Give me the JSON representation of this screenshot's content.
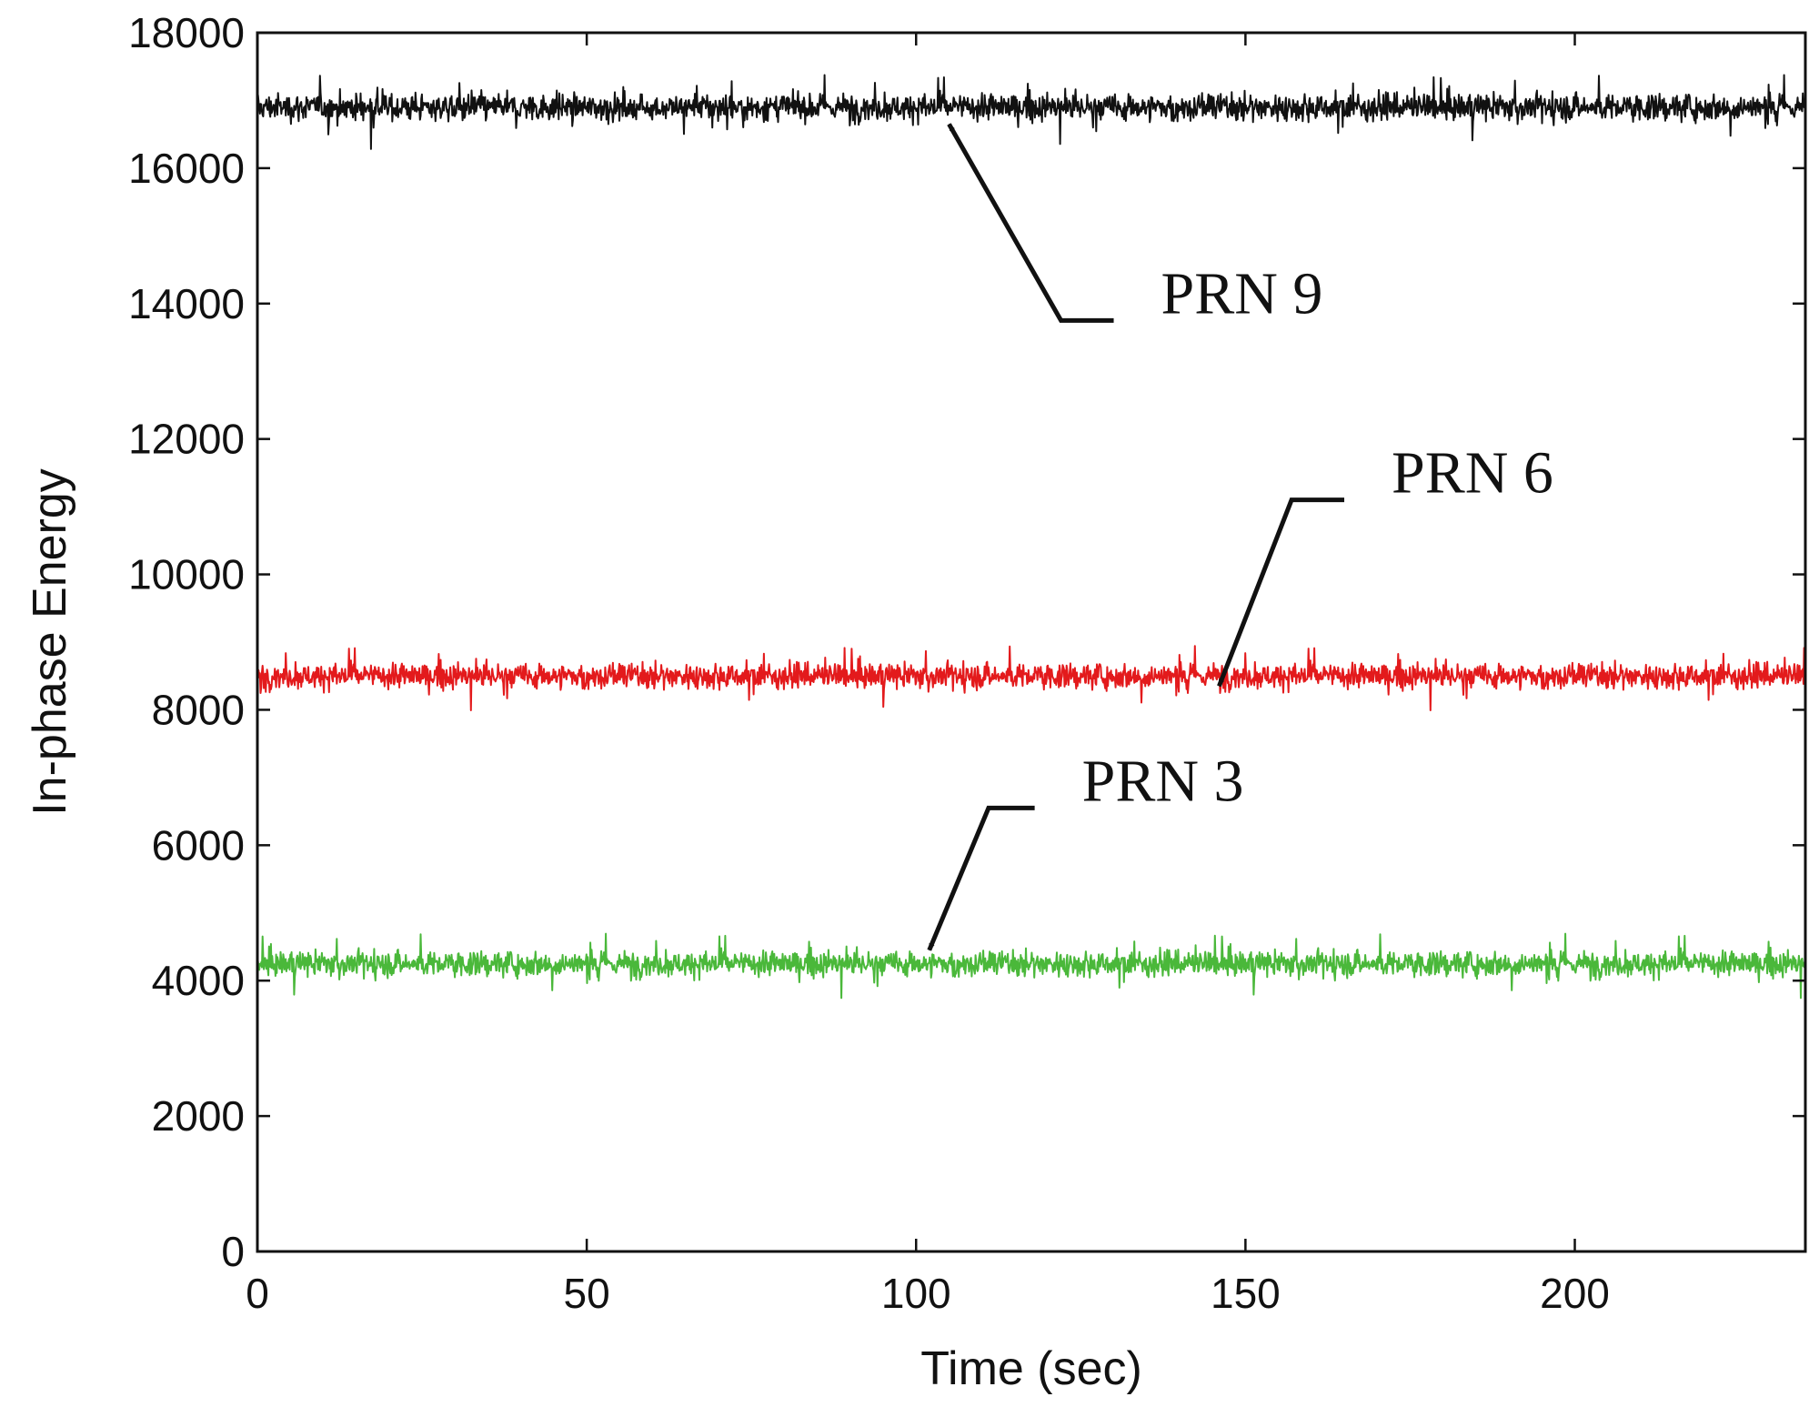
{
  "chart_data": {
    "type": "line",
    "title": "",
    "xlabel": "Time (sec)",
    "ylabel": "In-phase Energy",
    "xlim": [
      0,
      235
    ],
    "ylim": [
      0,
      18000
    ],
    "xticks": [
      0,
      50,
      100,
      150,
      200
    ],
    "yticks": [
      0,
      2000,
      4000,
      6000,
      8000,
      10000,
      12000,
      14000,
      16000,
      18000
    ],
    "grid": false,
    "legend": "none",
    "series": [
      {
        "name": "PRN 9",
        "color": "#111111",
        "mean": 16900,
        "spread": 300,
        "x_start": 0,
        "x_end": 235
      },
      {
        "name": "PRN 6",
        "color": "#e31a1c",
        "mean": 8500,
        "spread": 280,
        "x_start": 0,
        "x_end": 235
      },
      {
        "name": "PRN 3",
        "color": "#4ab83a",
        "mean": 4250,
        "spread": 280,
        "x_start": 0,
        "x_end": 235
      }
    ],
    "annotations": [
      {
        "text": "PRN 9",
        "target": [
          105,
          16650
        ],
        "elbow": [
          122,
          13750
        ],
        "elbow_end": [
          130,
          13750
        ]
      },
      {
        "text": "PRN 6",
        "target": [
          146,
          8350
        ],
        "elbow": [
          157,
          11100
        ],
        "elbow_end": [
          165,
          11100
        ]
      },
      {
        "text": "PRN 3",
        "target": [
          102,
          4450
        ],
        "elbow": [
          111,
          6550
        ],
        "elbow_end": [
          118,
          6550
        ]
      }
    ]
  }
}
